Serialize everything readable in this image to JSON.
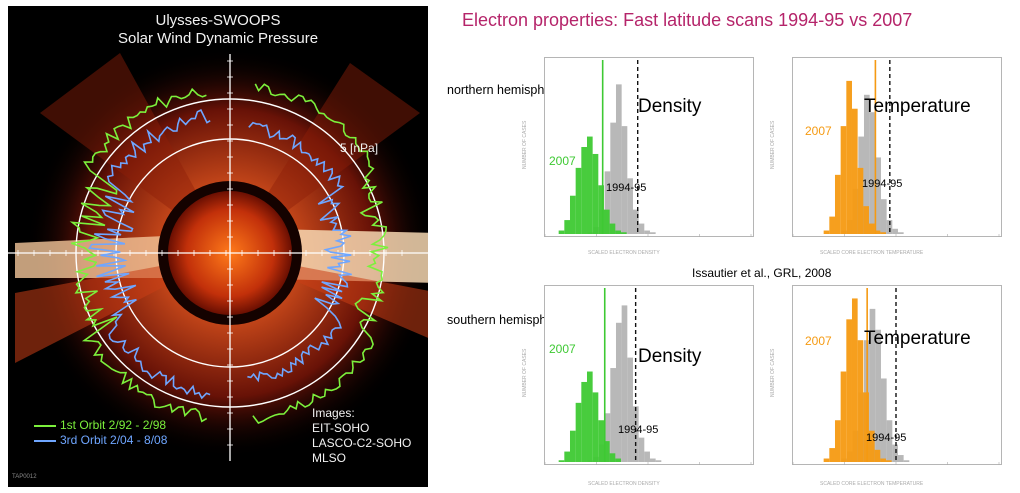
{
  "left": {
    "title": "Ulysses-SWOOPS",
    "subtitle": "Solar Wind Dynamic Pressure",
    "scale_label": "5 [nPa]",
    "legend": [
      {
        "label": "1st Orbit 2/92 - 2/98",
        "color": "#7cf03c"
      },
      {
        "label": "3rd Orbit 2/04 - 8/08",
        "color": "#6fa6ff"
      }
    ],
    "images_credit": [
      "Images:",
      "EIT-SOHO",
      "LASCO-C2-SOHO",
      "MLSO"
    ],
    "tiny_id": "TAP0012"
  },
  "right": {
    "title": "Electron properties: Fast latitude scans 1994-95 vs 2007",
    "hemispheres": [
      "northern hemisphere",
      "southern hemisphere"
    ],
    "citation": "Issautier et al., GRL, 2008"
  },
  "colors": {
    "density_2007": "#3ec933",
    "temperature_2007": "#f59a12",
    "ref_1994": "#b0b0b0"
  },
  "chart_data": [
    {
      "type": "bar",
      "panel": "north-density",
      "title": "Density",
      "xlabel": "SCALED ELECTRON DENSITY",
      "ylabel": "NUMBER OF CASES",
      "series": [
        {
          "name": "2007",
          "values": [
            0,
            2,
            8,
            22,
            38,
            50,
            56,
            46,
            28,
            14,
            6,
            2,
            1,
            0,
            0,
            0,
            0,
            0,
            0,
            0
          ]
        },
        {
          "name": "1994-95",
          "values": [
            0,
            0,
            0,
            0,
            1,
            4,
            14,
            36,
            64,
            86,
            62,
            32,
            14,
            6,
            2,
            1,
            0,
            0,
            0,
            0
          ]
        }
      ],
      "markers": {
        "solid": 0.28,
        "dashed": 0.45
      }
    },
    {
      "type": "bar",
      "panel": "north-temperature",
      "title": "Temperature",
      "xlabel": "SCALED CORE ELECTRON TEMPERATURE",
      "ylabel": "NUMBER OF CASES",
      "series": [
        {
          "name": "2007",
          "values": [
            0,
            0,
            0,
            0,
            2,
            10,
            34,
            62,
            88,
            72,
            38,
            16,
            6,
            2,
            1,
            0,
            0,
            0,
            0,
            0
          ]
        },
        {
          "name": "1994-95",
          "values": [
            0,
            0,
            0,
            0,
            0,
            2,
            8,
            26,
            56,
            80,
            70,
            44,
            20,
            8,
            3,
            1,
            0,
            0,
            0,
            0
          ]
        }
      ],
      "markers": {
        "solid": 0.4,
        "dashed": 0.47
      }
    },
    {
      "type": "bar",
      "panel": "south-density",
      "title": "Density",
      "xlabel": "SCALED ELECTRON DENSITY",
      "ylabel": "NUMBER OF CASES",
      "series": [
        {
          "name": "2007",
          "values": [
            0,
            1,
            6,
            18,
            34,
            46,
            52,
            40,
            24,
            12,
            5,
            2,
            0,
            0,
            0,
            0,
            0,
            0,
            0,
            0
          ]
        },
        {
          "name": "1994-95",
          "values": [
            0,
            0,
            0,
            0,
            1,
            3,
            10,
            28,
            54,
            80,
            90,
            60,
            32,
            14,
            6,
            2,
            1,
            0,
            0,
            0
          ]
        }
      ],
      "markers": {
        "solid": 0.29,
        "dashed": 0.44
      }
    },
    {
      "type": "bar",
      "panel": "south-temperature",
      "title": "Temperature",
      "xlabel": "SCALED CORE ELECTRON TEMPERATURE",
      "ylabel": "NUMBER OF CASES",
      "series": [
        {
          "name": "2007",
          "values": [
            0,
            0,
            0,
            0,
            2,
            8,
            24,
            52,
            82,
            94,
            70,
            40,
            18,
            7,
            2,
            1,
            0,
            0,
            0,
            0
          ]
        },
        {
          "name": "1994-95",
          "values": [
            0,
            0,
            0,
            0,
            0,
            2,
            6,
            18,
            40,
            70,
            88,
            76,
            48,
            24,
            10,
            4,
            1,
            0,
            0,
            0
          ]
        }
      ],
      "markers": {
        "solid": 0.36,
        "dashed": 0.5
      }
    }
  ]
}
